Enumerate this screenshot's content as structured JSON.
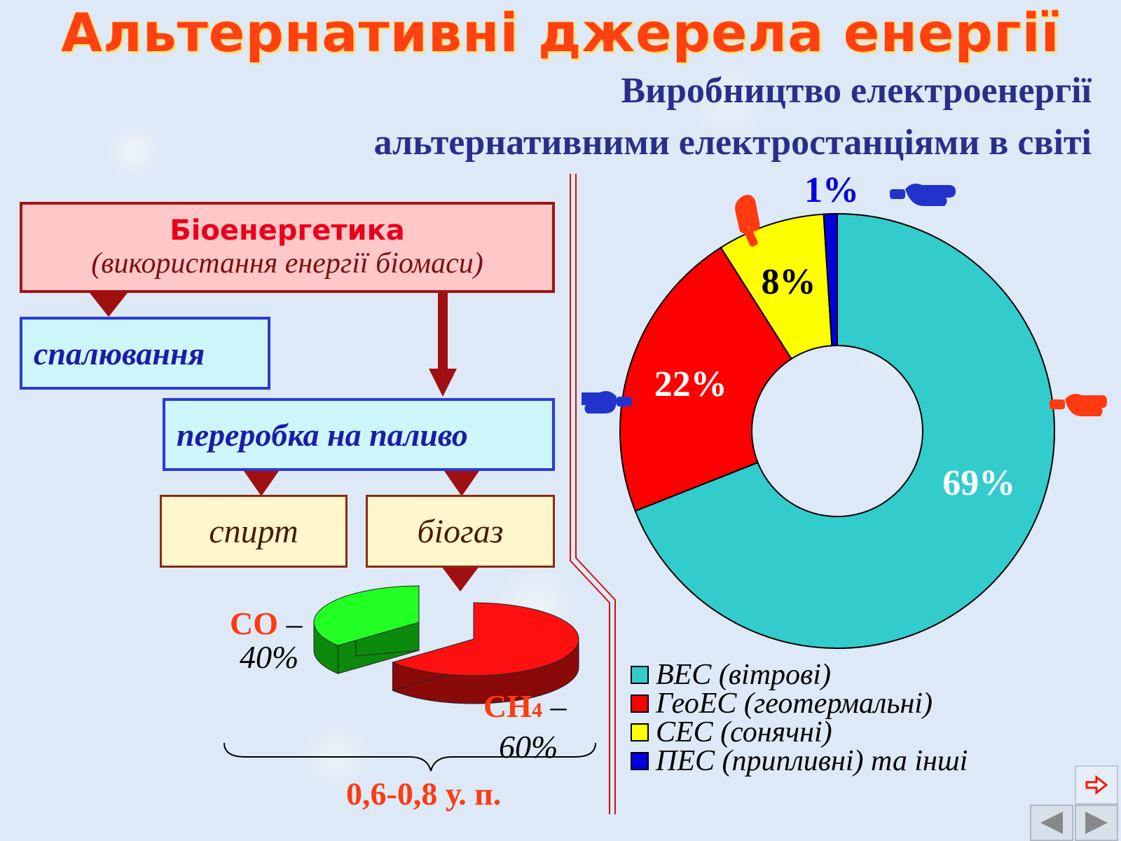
{
  "title": "Альтернативні джерела енергії",
  "subtitle_line1": "Виробництво електроенергії",
  "subtitle_line2": "альтернативними електростанціями в світі",
  "flow": {
    "bio_title": "Біоенергетика",
    "bio_subtitle": "(використання енергії біомаси)",
    "burning": "спалювання",
    "processing": "переробка на паливо",
    "alcohol": "спирт",
    "biogas": "біогаз"
  },
  "biogas_chart": {
    "co_label": "CO",
    "co_value": "40%",
    "ch4_label": "CH",
    "ch4_sub": "4",
    "ch4_value": "60%",
    "dash": "–",
    "total": "0,6-0,8 у. п."
  },
  "colors": {
    "wind": "#33cccc",
    "geo": "#ff0000",
    "solar": "#ffff00",
    "tidal": "#0000dd",
    "co_top": "#22ff22",
    "co_side": "#0b8a0b",
    "ch4_top": "#ff1010",
    "ch4_side": "#8a0a0a"
  },
  "chart_data": [
    {
      "type": "pie",
      "variant": "donut",
      "categories": [
        "ВЕС (вітрові)",
        "ГеоЕС (геотермальні)",
        "СЕС (сонячні)",
        "ПЕС (припливні) та інші"
      ],
      "values": [
        69,
        22,
        8,
        1
      ],
      "data_labels": [
        "69%",
        "22%",
        "8%",
        "1%"
      ],
      "legend_position": "bottom"
    },
    {
      "type": "pie",
      "variant": "3d-exploded",
      "categories": [
        "CO",
        "CH4"
      ],
      "values": [
        40,
        60
      ],
      "data_labels": [
        "40%",
        "60%"
      ]
    }
  ],
  "nav": {
    "return_icon": "return-arrow-icon",
    "prev_icon": "prev-triangle-icon",
    "next_icon": "next-triangle-icon"
  }
}
